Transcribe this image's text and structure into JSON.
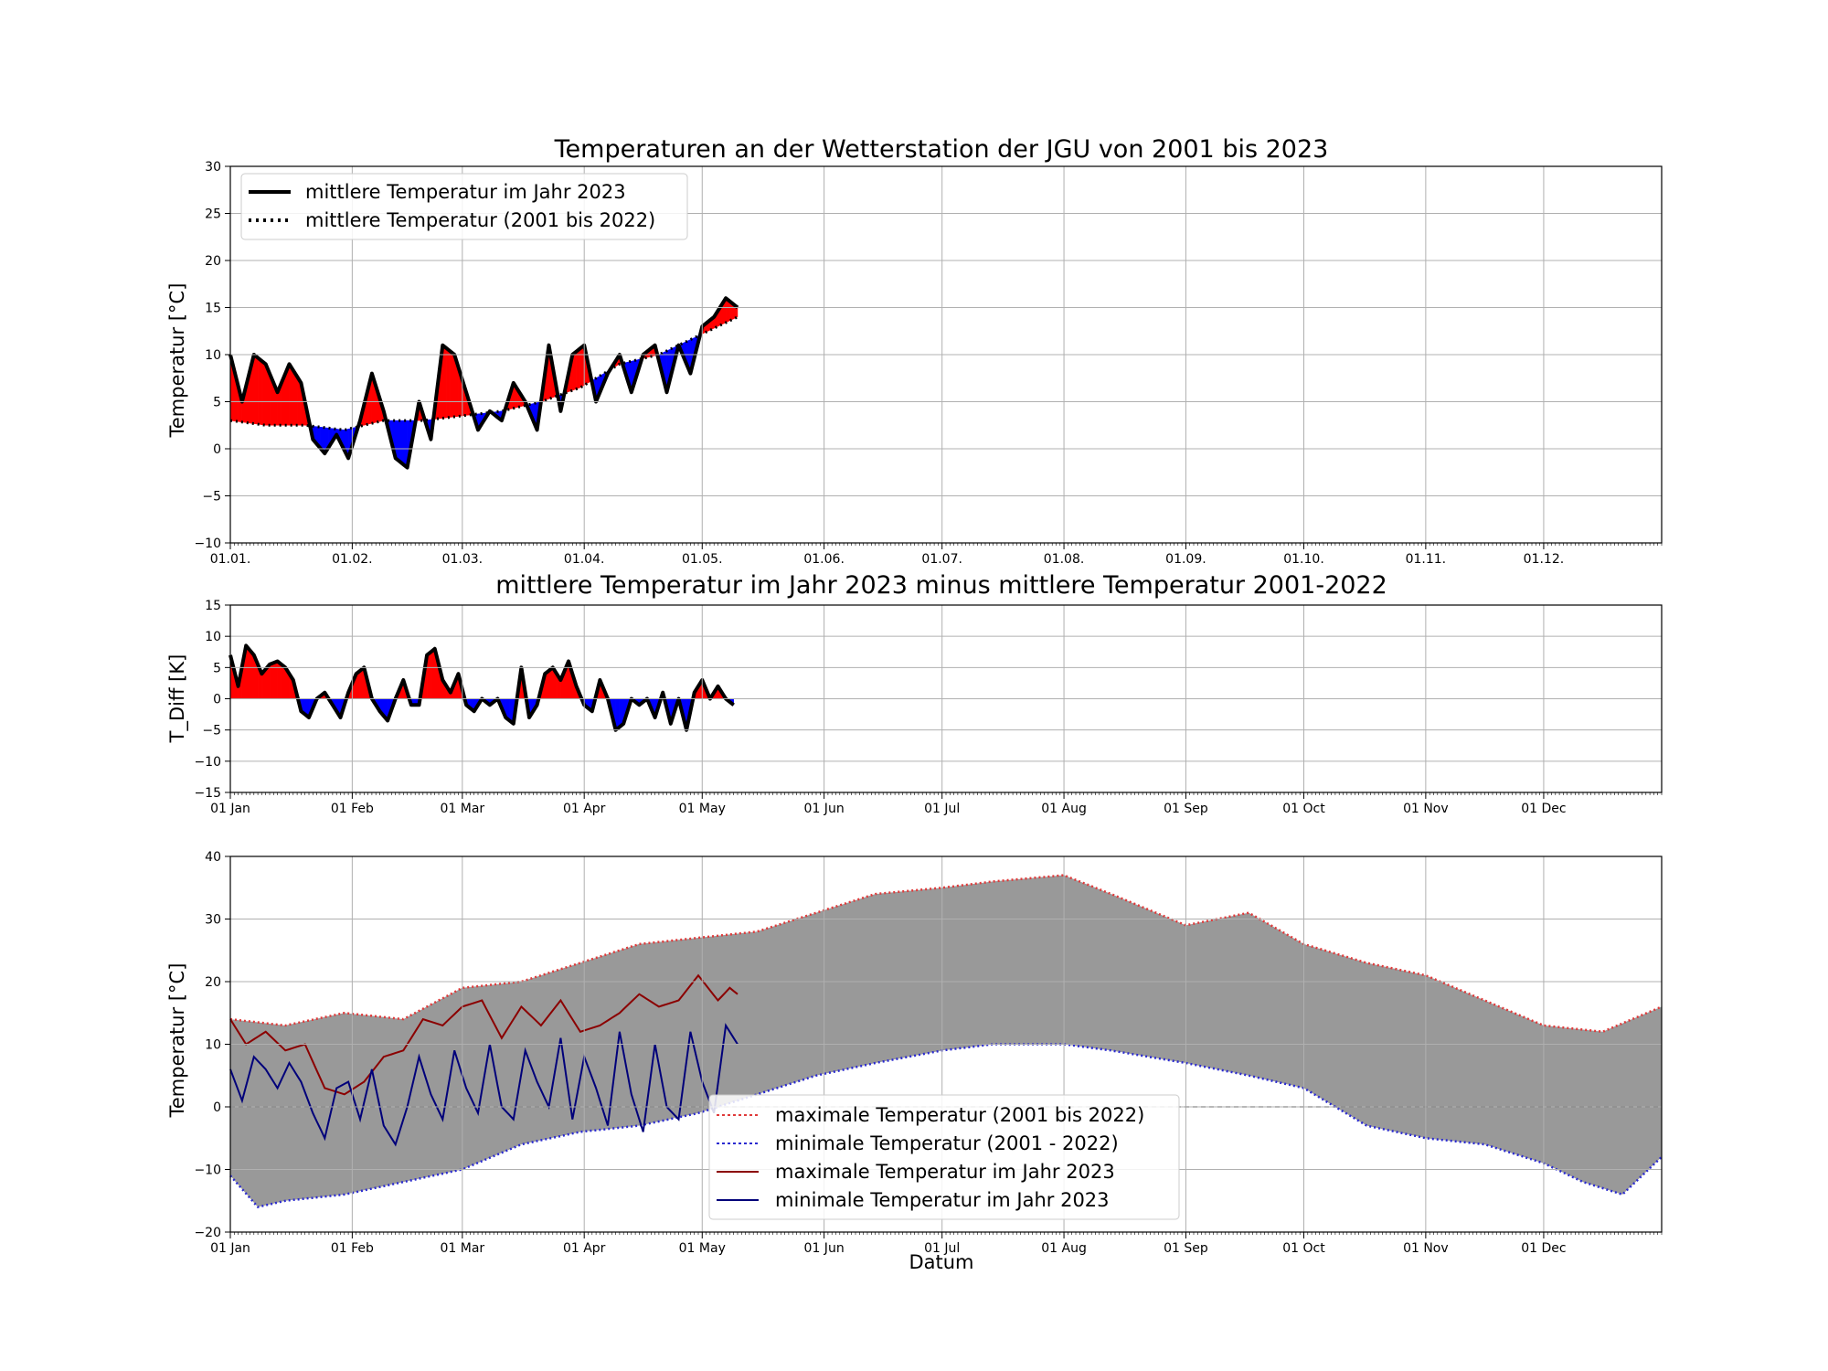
{
  "chart_data": [
    {
      "type": "line",
      "title": "Temperaturen an der Wetterstation der JGU von 2001 bis 2023",
      "ylabel": "Temperatur [°C]",
      "xlabel": "",
      "xlim": [
        1,
        365
      ],
      "ylim": [
        -10,
        30
      ],
      "yticks": [
        -10,
        -5,
        0,
        5,
        10,
        15,
        20,
        25,
        30
      ],
      "xtick_labels": [
        "01.01.",
        "01.02.",
        "01.03.",
        "01.04.",
        "01.05.",
        "01.06.",
        "01.07.",
        "01.08.",
        "01.09.",
        "01.10.",
        "01.11.",
        "01.12."
      ],
      "xtick_days": [
        1,
        32,
        60,
        91,
        121,
        152,
        182,
        213,
        244,
        274,
        305,
        335
      ],
      "grid": true,
      "legend_position": "top-left",
      "fill": "red where 2023 above mean, blue where below",
      "series": [
        {
          "name": "mittlere Temperatur im Jahr 2023",
          "style": "solid",
          "color": "#000000",
          "x": [
            1,
            4,
            7,
            10,
            13,
            16,
            19,
            22,
            25,
            28,
            31,
            34,
            37,
            40,
            43,
            46,
            49,
            52,
            55,
            58,
            61,
            64,
            67,
            70,
            73,
            76,
            79,
            82,
            85,
            88,
            91,
            94,
            97,
            100,
            103,
            106,
            109,
            112,
            115,
            118,
            121,
            124,
            127,
            130
          ],
          "values": [
            10,
            5,
            10,
            9,
            6,
            9,
            7,
            1,
            -0.5,
            1.5,
            -1,
            3,
            8,
            4,
            -1,
            -2,
            5,
            1,
            11,
            10,
            6,
            2,
            4,
            3,
            7,
            5,
            2,
            11,
            4,
            10,
            11,
            5,
            8,
            10,
            6,
            10,
            11,
            6,
            11,
            8,
            13,
            14,
            16,
            15
          ]
        },
        {
          "name": "mittlere Temperatur (2001 bis 2022)",
          "style": "dotted",
          "color": "#000000",
          "x": [
            1,
            10,
            20,
            30,
            40,
            50,
            60,
            70,
            80,
            90,
            100,
            110,
            120,
            130
          ],
          "values": [
            3,
            2.5,
            2.5,
            2,
            3,
            3,
            3.5,
            4,
            5,
            6.5,
            9,
            10,
            12,
            14
          ]
        }
      ]
    },
    {
      "type": "area",
      "title": "mittlere Temperatur im Jahr 2023 minus mittlere Temperatur 2001-2022",
      "ylabel": "T_Diff [K]",
      "xlabel": "",
      "xlim": [
        1,
        365
      ],
      "ylim": [
        -15,
        15
      ],
      "yticks": [
        -15,
        -10,
        -5,
        0,
        5,
        10,
        15
      ],
      "xtick_labels": [
        "01 Jan",
        "01 Feb",
        "01 Mar",
        "01 Apr",
        "01 May",
        "01 Jun",
        "01 Jul",
        "01 Aug",
        "01 Sep",
        "01 Oct",
        "01 Nov",
        "01 Dec"
      ],
      "xtick_days": [
        1,
        32,
        60,
        91,
        121,
        152,
        182,
        213,
        244,
        274,
        305,
        335
      ],
      "grid": true,
      "series": [
        {
          "name": "",
          "style": "solid",
          "color": "#000000",
          "x": [
            1,
            3,
            5,
            7,
            9,
            11,
            13,
            15,
            17,
            19,
            21,
            23,
            25,
            27,
            29,
            31,
            33,
            35,
            37,
            39,
            41,
            43,
            45,
            47,
            49,
            51,
            53,
            55,
            57,
            59,
            61,
            63,
            65,
            67,
            69,
            71,
            73,
            75,
            77,
            79,
            81,
            83,
            85,
            87,
            89,
            91,
            93,
            95,
            97,
            99,
            101,
            103,
            105,
            107,
            109,
            111,
            113,
            115,
            117,
            119,
            121,
            123,
            125,
            127,
            129
          ],
          "values": [
            7,
            2,
            8.5,
            7,
            4,
            5.5,
            6,
            5,
            3,
            -2,
            -3,
            0,
            1,
            -1,
            -3,
            1,
            4,
            5,
            0,
            -2,
            -3.5,
            0,
            3,
            -1,
            -1,
            7,
            8,
            3,
            1,
            4,
            -1,
            -2,
            0,
            -1,
            0,
            -3,
            -4,
            5,
            -3,
            -1,
            4,
            5,
            3,
            6,
            2,
            -1,
            -2,
            3,
            0,
            -5,
            -4,
            0,
            -1,
            0,
            -3,
            1,
            -4,
            0,
            -5,
            1,
            3,
            0,
            2,
            0,
            -1
          ]
        }
      ]
    },
    {
      "type": "line",
      "title": "",
      "ylabel": "Temperatur [°C]",
      "xlabel": "Datum",
      "xlim": [
        1,
        365
      ],
      "ylim": [
        -20,
        40
      ],
      "yticks": [
        -20,
        -10,
        0,
        10,
        20,
        30,
        40
      ],
      "xtick_labels": [
        "01 Jan",
        "01 Feb",
        "01 Mar",
        "01 Apr",
        "01 May",
        "01 Jun",
        "01 Jul",
        "01 Aug",
        "01 Sep",
        "01 Oct",
        "01 Nov",
        "01 Dec"
      ],
      "xtick_days": [
        1,
        32,
        60,
        91,
        121,
        152,
        182,
        213,
        244,
        274,
        305,
        335
      ],
      "grid": true,
      "legend_position": "lower-center",
      "fill": "grey between maximum and minimum (2001-2022)",
      "reference_line": 0,
      "series": [
        {
          "name": "maximale Temperatur (2001 bis 2022)",
          "style": "dotted",
          "color": "#e03a3a",
          "x": [
            1,
            15,
            30,
            45,
            60,
            75,
            90,
            105,
            120,
            135,
            150,
            165,
            182,
            195,
            213,
            225,
            244,
            260,
            274,
            290,
            305,
            320,
            335,
            350,
            365
          ],
          "values": [
            14,
            13,
            15,
            14,
            19,
            20,
            23,
            26,
            27,
            28,
            31,
            34,
            35,
            36,
            37,
            34,
            29,
            31,
            26,
            23,
            21,
            17,
            13,
            12,
            16
          ]
        },
        {
          "name": "minimale Temperatur (2001 - 2022)",
          "style": "dotted",
          "color": "#2a2ad0",
          "x": [
            1,
            8,
            15,
            30,
            45,
            60,
            75,
            90,
            105,
            120,
            135,
            150,
            165,
            182,
            195,
            213,
            225,
            244,
            260,
            274,
            290,
            305,
            320,
            335,
            345,
            355,
            365
          ],
          "values": [
            -11,
            -16,
            -15,
            -14,
            -12,
            -10,
            -6,
            -4,
            -3,
            -1,
            2,
            5,
            7,
            9,
            10,
            10,
            9,
            7,
            5,
            3,
            -3,
            -5,
            -6,
            -9,
            -12,
            -14,
            -8
          ]
        },
        {
          "name": "maximale Temperatur im Jahr 2023",
          "style": "solid",
          "color": "#8b0000",
          "x": [
            1,
            5,
            10,
            15,
            20,
            25,
            30,
            35,
            40,
            45,
            50,
            55,
            60,
            65,
            70,
            75,
            80,
            85,
            90,
            95,
            100,
            105,
            110,
            115,
            120,
            125,
            128,
            130
          ],
          "values": [
            14,
            10,
            12,
            9,
            10,
            3,
            2,
            4,
            8,
            9,
            14,
            13,
            16,
            17,
            11,
            16,
            13,
            17,
            12,
            13,
            15,
            18,
            16,
            17,
            21,
            17,
            19,
            18
          ]
        },
        {
          "name": "minimale Temperatur im Jahr 2023",
          "style": "solid",
          "color": "#00007a",
          "x": [
            1,
            4,
            7,
            10,
            13,
            16,
            19,
            22,
            25,
            28,
            31,
            34,
            37,
            40,
            43,
            46,
            49,
            52,
            55,
            58,
            61,
            64,
            67,
            70,
            73,
            76,
            79,
            82,
            85,
            88,
            91,
            94,
            97,
            100,
            103,
            106,
            109,
            112,
            115,
            118,
            121,
            124,
            127,
            130
          ],
          "values": [
            6,
            1,
            8,
            6,
            3,
            7,
            4,
            -1,
            -5,
            3,
            4,
            -2,
            6,
            -3,
            -6,
            0,
            8,
            2,
            -2,
            9,
            3,
            -1,
            10,
            0,
            -2,
            9,
            4,
            0,
            11,
            -2,
            8,
            3,
            -3,
            12,
            2,
            -4,
            10,
            0,
            -2,
            12,
            4,
            -1,
            13,
            10
          ]
        }
      ]
    }
  ],
  "legend_top": [
    {
      "label": "mittlere Temperatur im Jahr 2023",
      "style": "solid",
      "color": "#000000"
    },
    {
      "label": "mittlere Temperatur (2001 bis 2022)",
      "style": "dotted",
      "color": "#000000"
    }
  ],
  "legend_bottom": [
    {
      "label": "maximale Temperatur (2001 bis 2022)",
      "style": "dotted",
      "color": "#e03a3a"
    },
    {
      "label": "minimale Temperatur (2001 - 2022)",
      "style": "dotted",
      "color": "#2a2ad0"
    },
    {
      "label": "maximale Temperatur im Jahr 2023",
      "style": "solid",
      "color": "#8b0000"
    },
    {
      "label": "minimale Temperatur im Jahr 2023",
      "style": "solid",
      "color": "#00007a"
    }
  ],
  "colors": {
    "above": "#ff0000",
    "below": "#0000ff",
    "range_fill": "#999999",
    "grid": "#b0b0b0"
  }
}
